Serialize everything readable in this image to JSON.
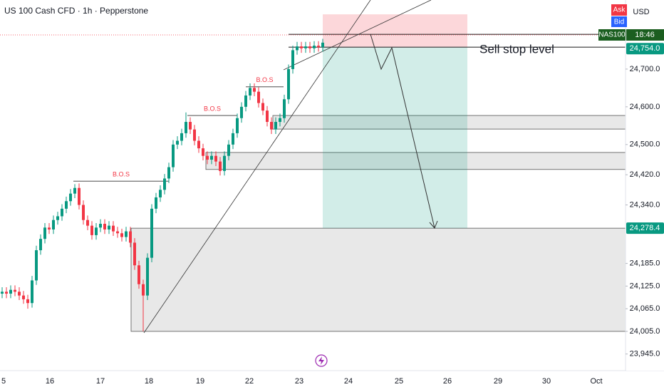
{
  "header": {
    "title": "US 100 Cash CFD · 1h · Pepperstone",
    "ask": "Ask",
    "bid": "Bid",
    "currency": "USD"
  },
  "chart_data": {
    "type": "candlestick",
    "up_color": "#089981",
    "down_color": "#f23645",
    "open": [
      24105,
      24110,
      24105,
      24115,
      24110,
      24100,
      24090,
      24080,
      24140,
      24220,
      24250,
      24280,
      24275,
      24300,
      24310,
      24330,
      24350,
      24370,
      24385,
      24340,
      24300,
      24285,
      24260,
      24280,
      24290,
      24275,
      24285,
      24270,
      24265,
      24255,
      24270,
      24240,
      24180,
      24130,
      24100,
      24200,
      24330,
      24360,
      24380,
      24410,
      24440,
      24500,
      24510,
      24530,
      24560,
      24540,
      24510,
      24490,
      24470,
      24460,
      24470,
      24455,
      24430,
      24470,
      24500,
      24530,
      24570,
      24600,
      24630,
      24650,
      24640,
      24610,
      24590,
      24560,
      24540,
      24560,
      24570,
      24620,
      24700,
      24750,
      24760,
      24755,
      24760,
      24755,
      24762,
      24758
    ],
    "high": [
      24122,
      24122,
      24127,
      24127,
      24122,
      24112,
      24102,
      24152,
      24232,
      24262,
      24292,
      24292,
      24312,
      24322,
      24342,
      24362,
      24382,
      24395,
      24397,
      24352,
      24312,
      24297,
      24292,
      24302,
      24302,
      24297,
      24297,
      24282,
      24277,
      24282,
      24282,
      24252,
      24192,
      24142,
      24212,
      24342,
      24372,
      24392,
      24422,
      24452,
      24512,
      24522,
      24542,
      24585,
      24572,
      24552,
      24522,
      24502,
      24482,
      24482,
      24482,
      24467,
      24482,
      24512,
      24542,
      24582,
      24612,
      24642,
      24662,
      24662,
      24652,
      24622,
      24602,
      24572,
      24572,
      24582,
      24632,
      24712,
      24762,
      24772,
      24772,
      24772,
      24772,
      24774,
      24774,
      24780
    ],
    "low": [
      24093,
      24093,
      24093,
      24098,
      24088,
      24078,
      24065,
      24068,
      24128,
      24208,
      24238,
      24263,
      24263,
      24288,
      24298,
      24318,
      24338,
      24358,
      24328,
      24288,
      24273,
      24248,
      24248,
      24268,
      24263,
      24263,
      24258,
      24253,
      24243,
      24243,
      24228,
      24168,
      24118,
      24005,
      24088,
      24188,
      24318,
      24348,
      24368,
      24398,
      24428,
      24488,
      24498,
      24518,
      24528,
      24498,
      24478,
      24458,
      24448,
      24448,
      24443,
      24418,
      24418,
      24458,
      24488,
      24518,
      24558,
      24588,
      24618,
      24628,
      24598,
      24578,
      24548,
      24528,
      24528,
      24548,
      24558,
      24608,
      24688,
      24738,
      24743,
      24743,
      24743,
      24743,
      24746,
      24746
    ],
    "close": [
      24110,
      24105,
      24115,
      24110,
      24100,
      24090,
      24080,
      24140,
      24220,
      24250,
      24280,
      24275,
      24300,
      24310,
      24330,
      24350,
      24370,
      24385,
      24340,
      24300,
      24285,
      24260,
      24280,
      24290,
      24275,
      24285,
      24270,
      24265,
      24255,
      24270,
      24240,
      24180,
      24130,
      24100,
      24200,
      24330,
      24360,
      24380,
      24410,
      24440,
      24500,
      24510,
      24530,
      24560,
      24540,
      24510,
      24490,
      24470,
      24460,
      24470,
      24455,
      24430,
      24470,
      24500,
      24530,
      24570,
      24600,
      24630,
      24650,
      24640,
      24610,
      24590,
      24560,
      24540,
      24560,
      24570,
      24620,
      24700,
      24750,
      24760,
      24755,
      24760,
      24755,
      24762,
      24758,
      24770
    ],
    "ylim": [
      23901,
      24883
    ],
    "yticks": [
      {
        "value": 24700,
        "label": "24,700.0"
      },
      {
        "value": 24600,
        "label": "24,600.0"
      },
      {
        "value": 24500,
        "label": "24,500.0"
      },
      {
        "value": 24420,
        "label": "24,420.0"
      },
      {
        "value": 24340,
        "label": "24,340.0"
      },
      {
        "value": 24185,
        "label": "24,185.0"
      },
      {
        "value": 24125,
        "label": "24,125.0"
      },
      {
        "value": 24065,
        "label": "24,065.0"
      },
      {
        "value": 24005,
        "label": "24,005.0"
      },
      {
        "value": 23945,
        "label": "23,945.0"
      }
    ],
    "xticks": [
      "5",
      "16",
      "17",
      "18",
      "19",
      "22",
      "23",
      "24",
      "25",
      "26",
      "29",
      "30",
      "Oct"
    ],
    "price_labels": [
      {
        "value": 24754,
        "label": "24,754.0"
      },
      {
        "value": 24278.4,
        "label": "24,278.4"
      }
    ],
    "symbol_label": "NAS100",
    "countdown": "18:46",
    "annotations": [
      {
        "text": "B.O.S",
        "value": 24403
      },
      {
        "text": "B.O.S",
        "value": 24577
      },
      {
        "text": "B.O.S",
        "value": 24653
      },
      {
        "text": "Sell stop level",
        "value": 24758
      }
    ],
    "zones": [
      {
        "top": 24278.4,
        "bottom": 24005
      },
      {
        "top": 24479,
        "bottom": 24434
      },
      {
        "top": 24577,
        "bottom": 24541
      }
    ],
    "trade": {
      "stop": 24845,
      "upper_line": 24792,
      "entry": 24758,
      "target": 24278.4
    }
  }
}
